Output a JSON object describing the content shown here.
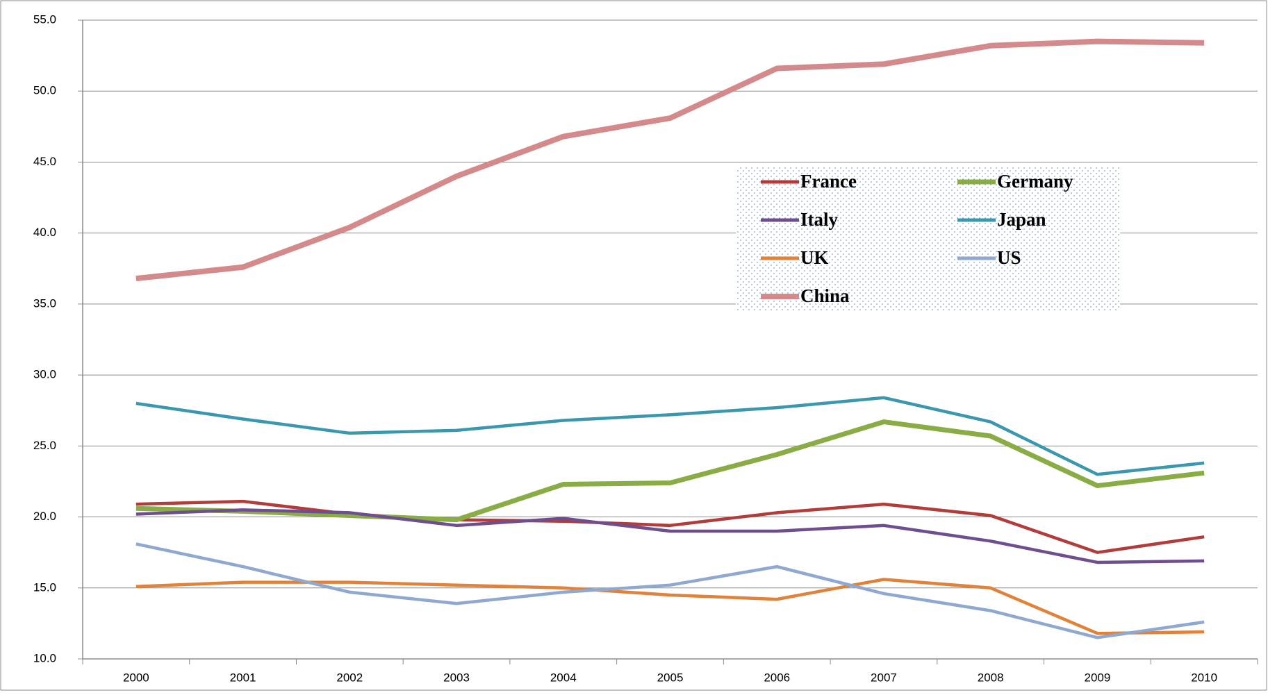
{
  "chart_data": {
    "type": "line",
    "categories": [
      "2000",
      "2001",
      "2002",
      "2003",
      "2004",
      "2005",
      "2006",
      "2007",
      "2008",
      "2009",
      "2010"
    ],
    "series": [
      {
        "name": "France",
        "color": "#b23c3a",
        "values": [
          20.9,
          21.1,
          20.2,
          19.8,
          19.7,
          19.4,
          20.3,
          20.9,
          20.1,
          17.5,
          18.6
        ]
      },
      {
        "name": "Germany",
        "color": "#8aac45",
        "values": [
          20.6,
          20.4,
          20.1,
          19.8,
          22.3,
          22.4,
          24.4,
          26.7,
          25.7,
          22.2,
          23.1
        ]
      },
      {
        "name": "Italy",
        "color": "#6f4e8f",
        "values": [
          20.2,
          20.5,
          20.3,
          19.4,
          19.9,
          19.0,
          19.0,
          19.4,
          18.3,
          16.8,
          16.9
        ]
      },
      {
        "name": "Japan",
        "color": "#3a97ae",
        "values": [
          28.0,
          26.9,
          25.9,
          26.1,
          26.8,
          27.2,
          27.7,
          28.4,
          26.7,
          23.0,
          23.8
        ]
      },
      {
        "name": "UK",
        "color": "#e0823a",
        "values": [
          15.1,
          15.4,
          15.4,
          15.2,
          15.0,
          14.5,
          14.2,
          15.6,
          15.0,
          11.8,
          11.9
        ]
      },
      {
        "name": "US",
        "color": "#8fa8d0",
        "values": [
          18.1,
          16.5,
          14.7,
          13.9,
          14.7,
          15.2,
          16.5,
          14.6,
          13.4,
          11.5,
          12.6
        ]
      },
      {
        "name": "China",
        "color": "#d48a8a",
        "values": [
          36.8,
          37.6,
          40.4,
          44.0,
          46.8,
          48.1,
          51.6,
          51.9,
          53.2,
          53.5,
          53.4
        ]
      }
    ],
    "ylim": [
      10,
      55
    ],
    "yticks": [
      {
        "value": 10,
        "label": "10.0"
      },
      {
        "value": 15,
        "label": "15.0"
      },
      {
        "value": 20,
        "label": "20.0"
      },
      {
        "value": 25,
        "label": "25.0"
      },
      {
        "value": 30,
        "label": "30.0"
      },
      {
        "value": 35,
        "label": "35.0"
      },
      {
        "value": 40,
        "label": "40.0"
      },
      {
        "value": 45,
        "label": "45.0"
      },
      {
        "value": 50,
        "label": "50.0"
      },
      {
        "value": 55,
        "label": "55.0"
      }
    ],
    "grid": true,
    "legend": "inside"
  }
}
